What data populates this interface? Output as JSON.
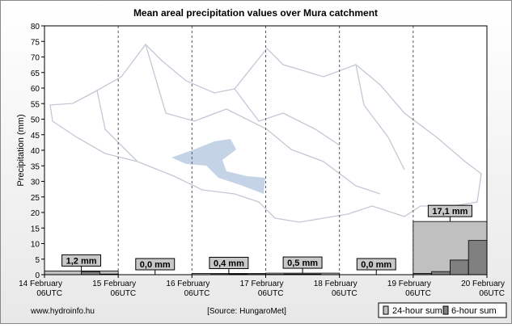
{
  "chart_data": {
    "type": "bar",
    "title": "Mean areal precipitation values over Mura catchment",
    "y_label": "Precipitation (mm)",
    "ylim": [
      0,
      80
    ],
    "yticks": [
      0,
      5,
      10,
      15,
      20,
      25,
      30,
      35,
      40,
      45,
      50,
      55,
      60,
      65,
      70,
      75,
      80
    ],
    "x_ticks": [
      {
        "date": "14 February",
        "time": "06UTC"
      },
      {
        "date": "15 February",
        "time": "06UTC"
      },
      {
        "date": "16 February",
        "time": "06UTC"
      },
      {
        "date": "17 February",
        "time": "06UTC"
      },
      {
        "date": "18 February",
        "time": "06UTC"
      },
      {
        "date": "19 February",
        "time": "06UTC"
      },
      {
        "date": "20 February",
        "time": "06UTC"
      }
    ],
    "grid": true,
    "series": [
      {
        "name": "24-hour sum",
        "color": "#c0c0c0",
        "values": [
          1.2,
          0.0,
          0.4,
          0.5,
          0.0,
          17.1
        ],
        "value_labels": [
          "1,2 mm",
          "0,0 mm",
          "0,4 mm",
          "0,5 mm",
          "0,0 mm",
          "17,1 mm"
        ]
      },
      {
        "name": "6-hour sum",
        "color": "#808080",
        "values": [
          0,
          0,
          1.0,
          0.2,
          0,
          0,
          0,
          0,
          0,
          0.1,
          0.2,
          0.1,
          0.1,
          0.2,
          0.2,
          0,
          0,
          0,
          0,
          0,
          0.4,
          1.0,
          4.7,
          11.0
        ]
      }
    ],
    "footer_left": "www.hydroinfo.hu",
    "source": "[Source: HungaroMet]"
  }
}
